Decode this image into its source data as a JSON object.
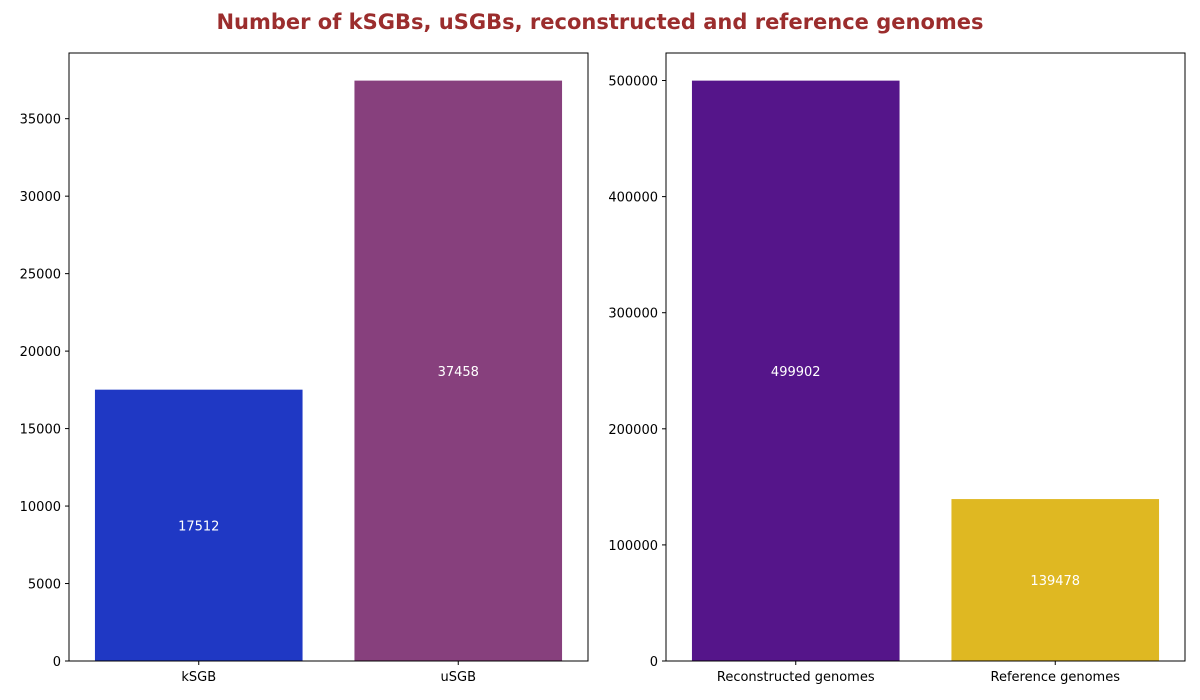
{
  "figure": {
    "title": "Number of kSGBs, uSGBs, reconstructed and reference genomes",
    "title_color": "#9b2d2d"
  },
  "chart_data": [
    {
      "type": "bar",
      "categories": [
        "kSGB",
        "uSGB"
      ],
      "values": [
        17512,
        37458
      ],
      "colors": [
        "#1f38c4",
        "#87407d"
      ],
      "value_labels": [
        "17512",
        "37458"
      ],
      "ylim": [
        0,
        39240
      ],
      "yticks": [
        0,
        5000,
        10000,
        15000,
        20000,
        25000,
        30000,
        35000
      ],
      "xlabel": "",
      "ylabel": "",
      "grid": false,
      "legend": "none"
    },
    {
      "type": "bar",
      "categories": [
        "Reconstructed genomes",
        "Reference genomes"
      ],
      "values": [
        499902,
        139478
      ],
      "colors": [
        "#55158a",
        "#dfb822"
      ],
      "value_labels": [
        "499902",
        "139478"
      ],
      "ylim": [
        0,
        523700
      ],
      "yticks": [
        0,
        100000,
        200000,
        300000,
        400000,
        500000
      ],
      "xlabel": "",
      "ylabel": "",
      "grid": false,
      "legend": "none"
    }
  ]
}
